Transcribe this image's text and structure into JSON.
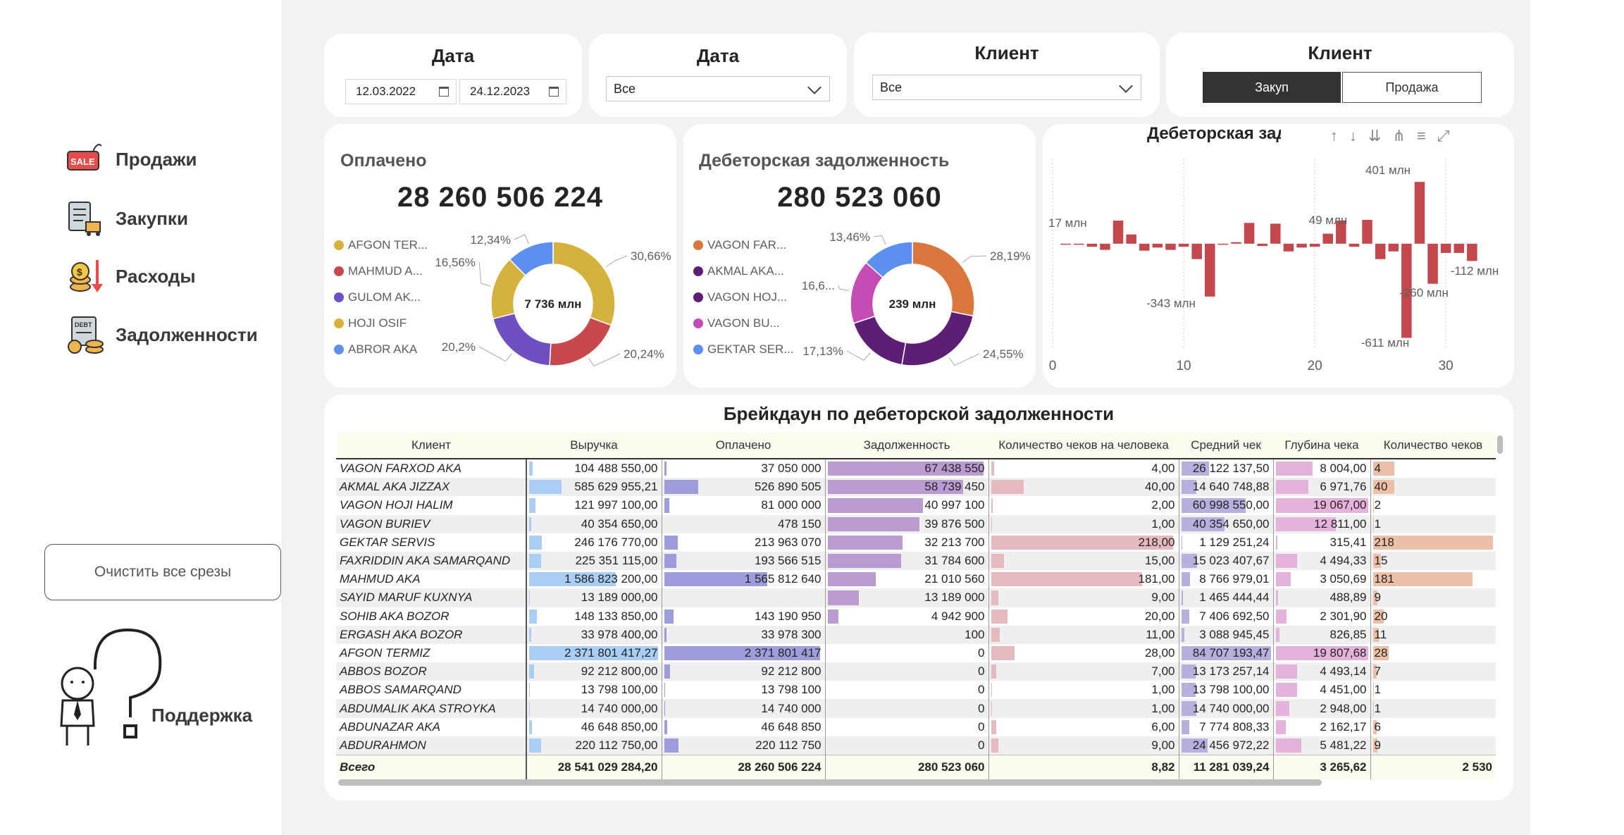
{
  "sidebar": {
    "nav": [
      {
        "label": "Продажи",
        "icon": "sale-tag-icon"
      },
      {
        "label": "Закупки",
        "icon": "purchase-clipboard-icon"
      },
      {
        "label": "Расходы",
        "icon": "expenses-coins-icon"
      },
      {
        "label": "Задолженности",
        "icon": "debt-document-icon"
      }
    ],
    "clear_button": "Очистить все срезы",
    "support_label": "Поддержка"
  },
  "slicers": {
    "date_range": {
      "title": "Дата",
      "start": "12.03.2022",
      "end": "24.12.2023"
    },
    "date_dropdown": {
      "title": "Дата",
      "value": "Все"
    },
    "client_dropdown": {
      "title": "Клиент",
      "value": "Все"
    },
    "client_toggle": {
      "title": "Клиент",
      "options": [
        "Закуп",
        "Продажа"
      ],
      "selected": "Закуп"
    }
  },
  "paid_card": {
    "title": "Оплачено",
    "value": "28 260 506 224",
    "center_label": "7 736 млн",
    "legend": [
      "AFGON TER...",
      "MAHMUD A...",
      "GULOM AK...",
      "HOJI OSIF",
      "ABROR AKA"
    ],
    "colors": [
      "#d4b23c",
      "#c8494d",
      "#6f4fc4",
      "#d4b23c",
      "#5b8ff0"
    ],
    "slices": [
      {
        "label": "30,66%",
        "value": 30.66,
        "color": "#d4b23c"
      },
      {
        "label": "20,24%",
        "value": 20.24,
        "color": "#c8494d"
      },
      {
        "label": "20,2%",
        "value": 20.2,
        "color": "#6f4fc4"
      },
      {
        "label": "16,56%",
        "value": 16.56,
        "color": "#d4b23c"
      },
      {
        "label": "12,34%",
        "value": 12.34,
        "color": "#5b8ff0"
      }
    ]
  },
  "debt_card": {
    "title": "Дебеторская задолженность",
    "value": "280 523 060",
    "center_label": "239 млн",
    "legend": [
      "VAGON FAR...",
      "AKMAL AKA...",
      "VAGON HOJ...",
      "VAGON BU...",
      "GEKTAR SER..."
    ],
    "colors": [
      "#d9763b",
      "#5c1f75",
      "#5c1f75",
      "#c74bb5",
      "#5b8ff0"
    ],
    "slices": [
      {
        "label": "28,19%",
        "value": 28.19,
        "color": "#d9763b"
      },
      {
        "label": "24,55%",
        "value": 24.55,
        "color": "#5c1f75"
      },
      {
        "label": "17,13%",
        "value": 17.13,
        "color": "#5c1f75"
      },
      {
        "label": "16,6...",
        "value": 16.67,
        "color": "#c74bb5"
      },
      {
        "label": "13,46%",
        "value": 13.46,
        "color": "#5b8ff0"
      }
    ]
  },
  "chart_data": {
    "type": "bar",
    "title": "Дебеторская задолженность",
    "title_visible": "Дебеторская задолж",
    "x": [
      1,
      2,
      3,
      4,
      5,
      6,
      7,
      8,
      9,
      10,
      11,
      12,
      13,
      14,
      15,
      16,
      17,
      18,
      19,
      20,
      21,
      22,
      23,
      24,
      25,
      26,
      27,
      28,
      29,
      30,
      31,
      32
    ],
    "values": [
      0,
      -2,
      -20,
      -40,
      150,
      60,
      -45,
      -25,
      -40,
      -20,
      -100,
      -343,
      0,
      10,
      135,
      -15,
      130,
      -50,
      -25,
      -20,
      65,
      150,
      -20,
      155,
      -100,
      -50,
      -611,
      401,
      -260,
      -60,
      -60,
      -112
    ],
    "xticks": [
      "0",
      "10",
      "20",
      "30"
    ],
    "xlim": [
      0,
      33
    ],
    "ylim": [
      -650,
      420
    ],
    "annotations": [
      "17 млн",
      "-343 млн",
      "49 млн",
      "401 млн",
      "-611 млн",
      "-260 млн",
      "-112 млн"
    ],
    "color": "#c2484d"
  },
  "table": {
    "title": "Брейкдаун по дебеторской задолженности",
    "columns": [
      "Клиент",
      "Выручка",
      "Оплачено",
      "Задолженность",
      "Количество чеков на человека",
      "Средний чек",
      "Глубина чека",
      "Количество чеков"
    ],
    "rows": [
      [
        "VAGON FARXOD AKA",
        "104 488 550,00",
        "37 050 000",
        "67 438 550",
        "4,00",
        "26 122 137,50",
        "8 004,00",
        "4"
      ],
      [
        "AKMAL AKA JIZZAX",
        "585 629 955,21",
        "526 890 505",
        "58 739 450",
        "40,00",
        "14 640 748,88",
        "6 971,76",
        "40"
      ],
      [
        "VAGON HOJI HALIM",
        "121 997 100,00",
        "81 000 000",
        "40 997 100",
        "2,00",
        "60 998 550,00",
        "19 067,00",
        "2"
      ],
      [
        "VAGON BURIEV",
        "40 354 650,00",
        "478 150",
        "39 876 500",
        "1,00",
        "40 354 650,00",
        "12 811,00",
        "1"
      ],
      [
        "GEKTAR SERVIS",
        "246 176 770,00",
        "213 963 070",
        "32 213 700",
        "218,00",
        "1 129 251,24",
        "315,41",
        "218"
      ],
      [
        "FAXRIDDIN AKA SAMARQAND",
        "225 351 115,00",
        "193 566 515",
        "31 784 600",
        "15,00",
        "15 023 407,67",
        "4 494,33",
        "15"
      ],
      [
        "MAHMUD AKA",
        "1 586 823 200,00",
        "1 565 812 640",
        "21 010 560",
        "181,00",
        "8 766 979,01",
        "3 050,69",
        "181"
      ],
      [
        "SAYID MARUF KUXNYA",
        "13 189 000,00",
        "",
        "13 189 000",
        "9,00",
        "1 465 444,44",
        "488,89",
        "9"
      ],
      [
        "SOHIB AKA BOZOR",
        "148 133 850,00",
        "143 190 950",
        "4 942 900",
        "20,00",
        "7 406 692,50",
        "2 301,90",
        "20"
      ],
      [
        "ERGASH AKA BOZOR",
        "33 978 400,00",
        "33 978 300",
        "100",
        "11,00",
        "3 088 945,45",
        "826,85",
        "11"
      ],
      [
        "AFGON TERMIZ",
        "2 371 801 417,27",
        "2 371 801 417",
        "0",
        "28,00",
        "84 707 193,47",
        "19 807,68",
        "28"
      ],
      [
        "ABBOS BOZOR",
        "92 212 800,00",
        "92 212 800",
        "0",
        "7,00",
        "13 173 257,14",
        "4 493,14",
        "7"
      ],
      [
        "ABBOS SAMARQAND",
        "13 798 100,00",
        "13 798 100",
        "0",
        "1,00",
        "13 798 100,00",
        "4 451,00",
        "1"
      ],
      [
        "ABDUMALIK AKA STROYKA",
        "14 740 000,00",
        "14 740 000",
        "0",
        "1,00",
        "14 740 000,00",
        "2 948,00",
        "1"
      ],
      [
        "ABDUNAZAR AKA",
        "46 648 850,00",
        "46 648 850",
        "0",
        "6,00",
        "7 774 808,33",
        "2 162,17",
        "6"
      ],
      [
        "ABDURAHMON",
        "220 112 750,00",
        "220 112 750",
        "0",
        "9,00",
        "24 456 972,22",
        "5 481,22",
        "9"
      ]
    ],
    "bar_fractions": [
      [
        0.03,
        0.015,
        1.0,
        0.018,
        0.31,
        0.4,
        0.18
      ],
      [
        0.25,
        0.22,
        0.87,
        0.18,
        0.17,
        0.35,
        0.18
      ],
      [
        0.05,
        0.035,
        0.61,
        0.009,
        0.72,
        1.0,
        0.009
      ],
      [
        0.017,
        0.0,
        0.59,
        0.005,
        0.48,
        0.65,
        0.005
      ],
      [
        0.1,
        0.09,
        0.48,
        1.0,
        0.013,
        0.017,
        1.0
      ],
      [
        0.095,
        0.08,
        0.47,
        0.07,
        0.18,
        0.23,
        0.07
      ],
      [
        0.67,
        0.66,
        0.31,
        0.83,
        0.1,
        0.16,
        0.83
      ],
      [
        0.006,
        0.0,
        0.2,
        0.04,
        0.017,
        0.025,
        0.04
      ],
      [
        0.062,
        0.06,
        0.07,
        0.09,
        0.09,
        0.12,
        0.09
      ],
      [
        0.014,
        0.014,
        0.0,
        0.05,
        0.036,
        0.04,
        0.05
      ],
      [
        1.0,
        1.0,
        0.0,
        0.13,
        1.0,
        1.0,
        0.13
      ],
      [
        0.039,
        0.039,
        0.0,
        0.03,
        0.16,
        0.23,
        0.03
      ],
      [
        0.006,
        0.006,
        0.0,
        0.005,
        0.16,
        0.23,
        0.005
      ],
      [
        0.006,
        0.006,
        0.0,
        0.005,
        0.17,
        0.15,
        0.005
      ],
      [
        0.02,
        0.02,
        0.0,
        0.03,
        0.09,
        0.11,
        0.03
      ],
      [
        0.093,
        0.093,
        0.0,
        0.04,
        0.29,
        0.28,
        0.04
      ]
    ],
    "bar_colors": [
      "#a9cdf5",
      "#9d9ddb",
      "#b99ad1",
      "#e5b9be",
      "#b7b0de",
      "#e5b2dc",
      "#ecc0a6"
    ],
    "total": [
      "Всего",
      "28 541 029 284,20",
      "28 260 506 224",
      "280 523 060",
      "8,82",
      "11 281 039,24",
      "3 265,62",
      "2 530"
    ]
  }
}
